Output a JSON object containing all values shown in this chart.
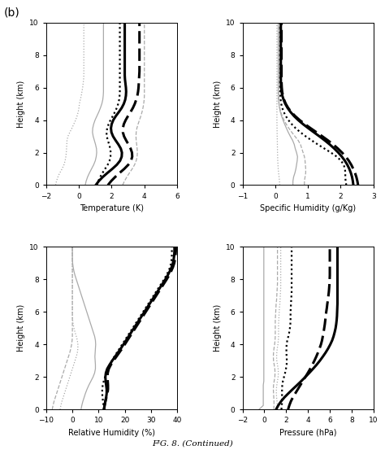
{
  "title": "FIG. 8. (Continued)",
  "panel_label": "(b)",
  "subplots": [
    {
      "xlabel": "Temperature (K)",
      "xlim": [
        -2,
        6
      ],
      "xticks": [
        -2,
        0,
        2,
        4,
        6
      ]
    },
    {
      "xlabel": "Specific Humidity (g/Kg)",
      "xlim": [
        -1,
        3
      ],
      "xticks": [
        -1,
        0,
        1,
        2,
        3
      ]
    },
    {
      "xlabel": "Relative Humidity (%)",
      "xlim": [
        -10,
        40
      ],
      "xticks": [
        -10,
        0,
        10,
        20,
        30,
        40
      ]
    },
    {
      "xlabel": "Pressure (hPa)",
      "xlim": [
        -2,
        10
      ],
      "xticks": [
        -2,
        0,
        2,
        4,
        6,
        8,
        10
      ]
    }
  ],
  "ylim": [
    0,
    10
  ],
  "yticks": [
    0,
    2,
    4,
    6,
    8,
    10
  ],
  "ylabel": "Height (km)"
}
